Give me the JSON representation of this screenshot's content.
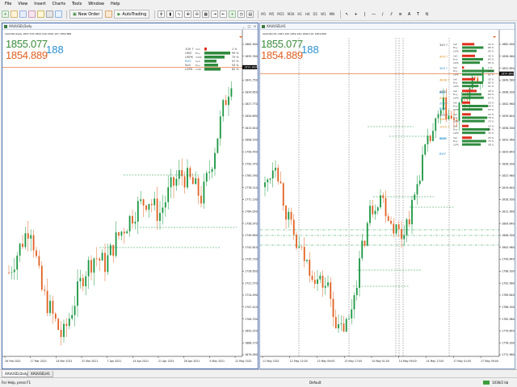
{
  "menu": [
    "File",
    "View",
    "Insert",
    "Charts",
    "Tools",
    "Window",
    "Help"
  ],
  "toolbar": {
    "new_order": "New Order",
    "auto_trading": "AutoTrading",
    "timeframes": [
      "M1",
      "M5",
      "M15",
      "M30",
      "H1",
      "H4",
      "D1",
      "W1",
      "MN"
    ]
  },
  "colors": {
    "bull": "#1a9641",
    "bear": "#e06020",
    "bid": "#3a8a3a",
    "ask": "#e06020",
    "spread": "#2a8fd1",
    "bar_green": "#2e8b3e",
    "bar_red": "#e0301e",
    "guide": "#1a9641",
    "window_border": "#8aa2c8"
  },
  "left_chart": {
    "title": "XAUUSD,Daily",
    "ohlc": "XAUUSD,Daily  1847.530 1852.249 1842.197 1854.889",
    "bid": "1855.077",
    "ask": "1854.889",
    "spread": "188",
    "price_axis": [
      "1862.900",
      "1855.390",
      "1848.070",
      "1841.750",
      "1834.850",
      "1827.770",
      "1820.690",
      "1813.610",
      "1806.530",
      "1799.450",
      "1792.370",
      "1785.290",
      "1778.210",
      "1771.130",
      "1764.050",
      "1756.970",
      "1749.890",
      "1742.810",
      "1735.730",
      "1728.650",
      "1721.570",
      "1714.490",
      "1707.410",
      "1700.330",
      "1693.250",
      "1686.170",
      "1679.090"
    ],
    "current_price": "1854.889",
    "date_axis": [
      "26 Feb 2021",
      "17 Mar 2021",
      "24 Mar 2021",
      "31 Mar 2021",
      "7 Apr 2021",
      "14 Apr 2021",
      "21 Apr 2021",
      "28 Apr 2021",
      "5 May 2021",
      "12 May 2021"
    ],
    "panel": {
      "rows": [
        {
          "label": "Sell",
          "value": "1%"
        },
        {
          "label": "Buy",
          "value": "99%"
        },
        {
          "label": "USPK",
          "value": "75%"
        },
        {
          "label": "Sell",
          "value": "1%"
        },
        {
          "label": "Buy",
          "value": "99%"
        },
        {
          "label": "LSPK",
          "value": "62%"
        }
      ],
      "signals": [
        {
          "label": "100 ?",
          "value": "1 %"
        },
        {
          "label": "USD",
          "value": "99 %"
        },
        {
          "label": "USPK",
          "value": "75 %"
        },
        {
          "label": "BUY",
          "value": "47 %"
        },
        {
          "label": "Sell",
          "value": "53 %"
        },
        {
          "label": "LSPK",
          "value": "62 %"
        }
      ]
    }
  },
  "right_chart": {
    "title": "XAUUSD,H1",
    "ohlc": "XAUUSD,H1  1847.445 1852.249 1846.197 1854.889",
    "bid": "1855.077",
    "ask": "1854.889",
    "spread": "188",
    "price_axis": [
      "1862.900",
      "1858.060",
      "1852.850",
      "1849.580",
      "1846.300",
      "1842.960",
      "1839.640",
      "1836.300",
      "1832.960",
      "1829.640",
      "1826.300",
      "1822.960",
      "1819.640",
      "1816.300",
      "1812.960",
      "1809.640",
      "1806.300",
      "1802.960",
      "1799.640",
      "1796.300",
      "1792.960",
      "1789.640",
      "1786.300",
      "1782.960",
      "1779.640",
      "1776.300",
      "1772.960"
    ],
    "current_price": "1854.889",
    "date_axis": [
      "11 May 2021",
      "12 May 12:00",
      "13 May 09:00",
      "13 May 17:00",
      "14 May 01:00",
      "14 May 09:00",
      "14 May 17:00",
      "17 May 01:00",
      "17 May 09:00"
    ],
    "signal_groups": [
      {
        "num": "345 ?",
        "sell": "33 %",
        "buy": "66 %",
        "pk": "45 %"
      },
      {
        "num": "400 ?",
        "sell": "35 %",
        "buy": "65 %",
        "pk": "55 %"
      },
      {
        "num": "300 ?",
        "sell": "1 %",
        "buy": "99 %",
        "pk": "62 %"
      },
      {
        "num": "4848 ?",
        "sell": "35 %",
        "buy": "65 %",
        "pk": "51 %"
      },
      {
        "num": "4857",
        "sell": "40 %",
        "buy": "60 %",
        "pk": "67 %"
      },
      {
        "num": "205 ?",
        "sell": "20 %",
        "buy": "80 %",
        "pk": "63 %"
      },
      {
        "num": "105 ?",
        "sell": "22 %",
        "buy": "78 %",
        "pk": "70 %"
      },
      {
        "num": "1025 ?",
        "sell": "15 %",
        "buy": "85 %",
        "pk": "72 %"
      },
      {
        "num": "3030",
        "sell": "25 %",
        "buy": "75 %",
        "pk": "58 %"
      }
    ],
    "side_labels": [
      "BUY",
      "Sell",
      "BUY",
      "Sell",
      "BUY",
      "BUY"
    ]
  },
  "tabs": [
    "XAUUSD,Daily",
    "XAUUSD,H1"
  ],
  "status": {
    "help": "For Help, press F1",
    "profile": "Default",
    "connection": "1036/2 kb"
  }
}
